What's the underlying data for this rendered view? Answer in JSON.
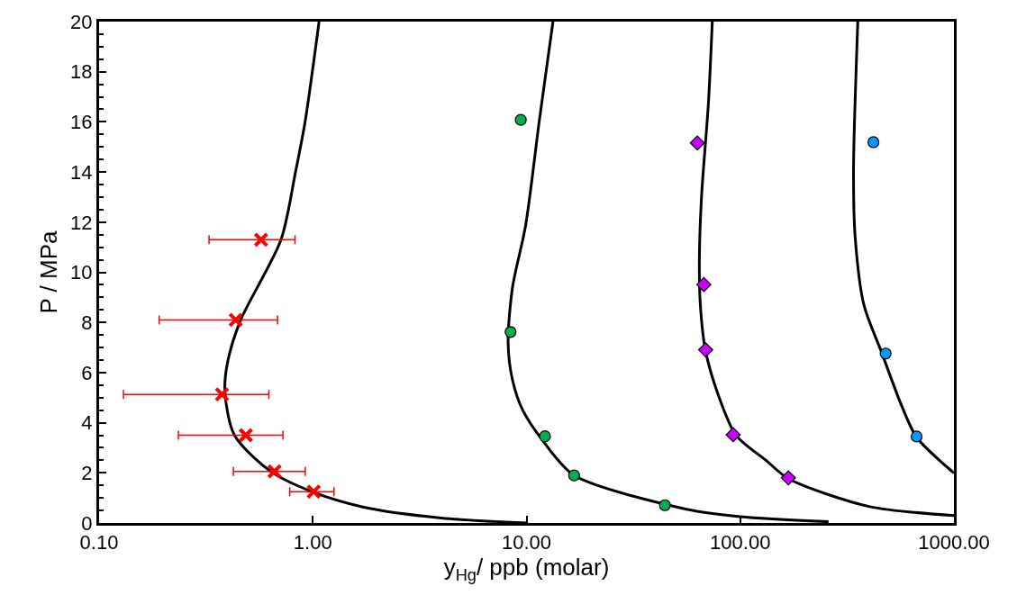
{
  "chart_data": {
    "type": "scatter",
    "xlabel": "y$_{Hg}$/ ppb (molar)",
    "ylabel": "P / MPa",
    "log": "x",
    "xlim": [
      0.1,
      1000
    ],
    "xticks": [
      {
        "value": 0.1,
        "label": "0.10"
      },
      {
        "value": 1,
        "label": "1.00"
      },
      {
        "value": 10,
        "label": "10.00"
      },
      {
        "value": 100,
        "label": "100.00"
      },
      {
        "value": 1000,
        "label": "1000.00"
      }
    ],
    "ylim": [
      0,
      20
    ],
    "yticks": [
      0,
      2,
      4,
      6,
      8,
      10,
      12,
      14,
      16,
      18,
      20
    ],
    "series": [
      {
        "type": "line",
        "marker": "none",
        "color": "#000000",
        "x": [
          1.07,
          0.92,
          0.83,
          0.71,
          0.46,
          0.4,
          0.388,
          0.43,
          0.635,
          0.99,
          1.73,
          4,
          10
        ],
        "values": [
          20,
          16,
          14,
          11.3,
          8.1,
          6.45,
          5.23,
          3.5,
          2.06,
          1.25,
          0.63,
          0.2,
          0.0
        ]
      },
      {
        "type": "line",
        "marker": "none",
        "color": "#000000",
        "x": [
          13.3,
          11.5,
          9.9,
          8.6,
          8.2,
          8.6,
          9.6,
          12.0,
          16.7,
          56,
          100,
          259
        ],
        "values": [
          20,
          16.1,
          11.86,
          9.4,
          7.2,
          5.7,
          4.5,
          3.25,
          1.9,
          0.55,
          0.25,
          0.05
        ]
      },
      {
        "type": "line",
        "marker": "none",
        "color": "#000000",
        "x": [
          74,
          71,
          66,
          64.4,
          65,
          68.7,
          79,
          95.6,
          132,
          168,
          400,
          1000
        ],
        "values": [
          20,
          16.76,
          13.1,
          10.6,
          8.77,
          6.9,
          5.1,
          3.5,
          2.5,
          1.77,
          0.66,
          0.3
        ]
      },
      {
        "type": "line",
        "marker": "none",
        "color": "#000000",
        "x": [
          355,
          339,
          345,
          379,
          460,
          569,
          669,
          1000
        ],
        "values": [
          20,
          14.1,
          11.4,
          8.7,
          6.78,
          4.68,
          3.42,
          1.99
        ]
      },
      {
        "marker": "cross",
        "color": "#ff0000",
        "x": [
          0.573,
          0.436,
          0.376,
          0.486,
          0.662,
          1.01
        ],
        "values": [
          11.3,
          8.1,
          5.13,
          3.5,
          2.06,
          1.25
        ],
        "xerrors": [
          [
            0.327,
            0.826
          ],
          [
            0.191,
            0.684
          ],
          [
            0.13,
            0.623
          ],
          [
            0.235,
            0.725
          ],
          [
            0.425,
            0.922
          ],
          [
            0.78,
            1.256
          ]
        ]
      },
      {
        "marker": "circle",
        "color": "#00b050",
        "x": [
          9.4,
          8.42,
          12.2,
          16.7,
          44.4
        ],
        "values": [
          16.08,
          7.62,
          3.46,
          1.9,
          0.71
        ]
      },
      {
        "marker": "diamond",
        "color": "#cc00ff",
        "x": [
          63,
          67.6,
          68.9,
          92.7,
          168
        ],
        "values": [
          15.16,
          9.51,
          6.91,
          3.52,
          1.8
        ]
      },
      {
        "marker": "circle",
        "color": "#0099ff",
        "x": [
          420,
          479,
          669
        ],
        "values": [
          15.19,
          6.76,
          3.45
        ]
      }
    ]
  }
}
